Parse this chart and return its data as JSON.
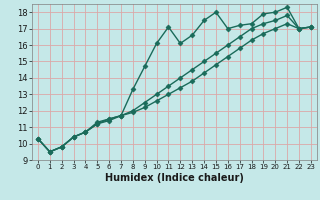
{
  "title": "",
  "xlabel": "Humidex (Indice chaleur)",
  "bg_color": "#c5e8e8",
  "grid_color": "#dba8a8",
  "line_color": "#1a6b5a",
  "xlim": [
    -0.5,
    23.5
  ],
  "ylim": [
    9.0,
    18.5
  ],
  "xticks": [
    0,
    1,
    2,
    3,
    4,
    5,
    6,
    7,
    8,
    9,
    10,
    11,
    12,
    13,
    14,
    15,
    16,
    17,
    18,
    19,
    20,
    21,
    22,
    23
  ],
  "yticks": [
    9,
    10,
    11,
    12,
    13,
    14,
    15,
    16,
    17,
    18
  ],
  "series1_x": [
    0,
    1,
    2,
    3,
    4,
    5,
    6,
    7,
    8,
    9,
    10,
    11,
    12,
    13,
    14,
    15,
    16,
    17,
    18,
    19,
    20,
    21,
    22,
    23
  ],
  "series1_y": [
    10.3,
    9.5,
    9.8,
    10.4,
    10.7,
    11.3,
    11.5,
    11.7,
    13.3,
    14.7,
    16.1,
    17.1,
    16.1,
    16.6,
    17.5,
    18.0,
    17.0,
    17.2,
    17.3,
    17.9,
    18.0,
    18.3,
    17.0,
    17.1
  ],
  "series2_x": [
    0,
    1,
    2,
    3,
    4,
    5,
    6,
    7,
    8,
    9,
    10,
    11,
    12,
    13,
    14,
    15,
    16,
    17,
    18,
    19,
    20,
    21,
    22,
    23
  ],
  "series2_y": [
    10.3,
    9.5,
    9.8,
    10.4,
    10.7,
    11.2,
    11.5,
    11.7,
    12.0,
    12.5,
    13.0,
    13.5,
    14.0,
    14.5,
    15.0,
    15.5,
    16.0,
    16.5,
    17.0,
    17.3,
    17.5,
    17.8,
    17.0,
    17.1
  ],
  "series3_x": [
    0,
    1,
    2,
    3,
    4,
    5,
    6,
    7,
    8,
    9,
    10,
    11,
    12,
    13,
    14,
    15,
    16,
    17,
    18,
    19,
    20,
    21,
    22,
    23
  ],
  "series3_y": [
    10.3,
    9.5,
    9.8,
    10.4,
    10.7,
    11.2,
    11.4,
    11.7,
    11.9,
    12.2,
    12.6,
    13.0,
    13.4,
    13.8,
    14.3,
    14.8,
    15.3,
    15.8,
    16.3,
    16.7,
    17.0,
    17.3,
    17.0,
    17.1
  ],
  "marker": "D",
  "markersize": 2.5,
  "linewidth": 1.0
}
